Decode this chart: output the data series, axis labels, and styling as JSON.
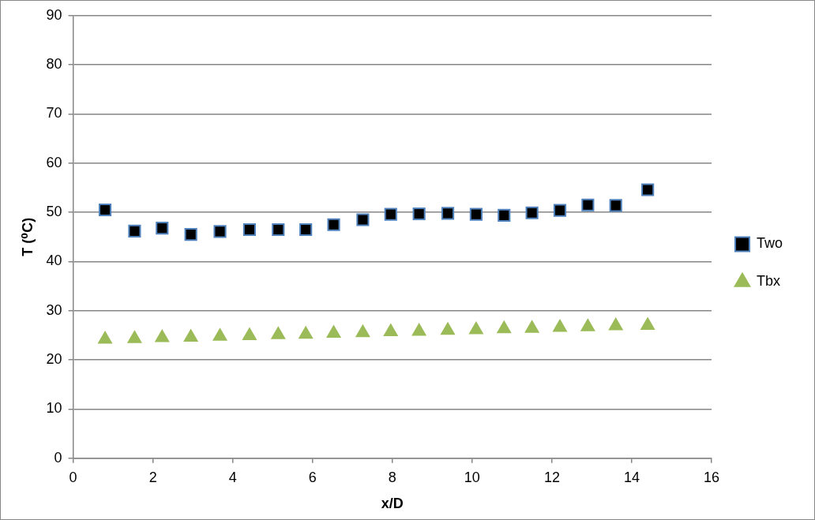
{
  "chart_data": {
    "type": "scatter",
    "xlabel": "x/D",
    "ylabel": "T (⁰C)",
    "xlim": [
      0,
      16
    ],
    "xticks": [
      0,
      2,
      4,
      6,
      8,
      10,
      12,
      14,
      16
    ],
    "ylim": [
      0,
      90
    ],
    "yticks": [
      0,
      10,
      20,
      30,
      40,
      50,
      60,
      70,
      80,
      90
    ],
    "grid": "y",
    "legend": "right",
    "x": [
      0.8,
      1.54,
      2.23,
      2.95,
      3.68,
      4.42,
      5.14,
      5.83,
      6.53,
      7.26,
      7.96,
      8.67,
      9.39,
      10.1,
      10.8,
      11.5,
      12.2,
      12.9,
      13.6,
      14.4
    ],
    "series": [
      {
        "name": "Two",
        "color": "#000000",
        "marker": "square",
        "values": [
          50.5,
          46.2,
          46.8,
          45.5,
          46.1,
          46.5,
          46.5,
          46.5,
          47.5,
          48.5,
          49.6,
          49.7,
          49.8,
          49.6,
          49.4,
          49.9,
          50.4,
          51.5,
          51.4,
          54.6
        ]
      },
      {
        "name": "Tbx",
        "color": "#9bbb59",
        "marker": "triangle",
        "values": [
          24.2,
          24.3,
          24.5,
          24.6,
          24.8,
          24.9,
          25.1,
          25.2,
          25.4,
          25.5,
          25.7,
          25.8,
          26.0,
          26.1,
          26.3,
          26.4,
          26.6,
          26.7,
          26.9,
          27.0
        ]
      }
    ]
  }
}
